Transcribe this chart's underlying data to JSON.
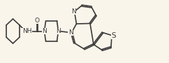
{
  "bg_color": "#faf5eb",
  "bond_color": "#3a3a3a",
  "bond_width": 1.2,
  "dbo": 0.006,
  "fs": 6.5,
  "fig_w": 2.42,
  "fig_h": 0.9,
  "xlim": [
    0,
    2.42
  ],
  "ylim": [
    0,
    0.9
  ]
}
